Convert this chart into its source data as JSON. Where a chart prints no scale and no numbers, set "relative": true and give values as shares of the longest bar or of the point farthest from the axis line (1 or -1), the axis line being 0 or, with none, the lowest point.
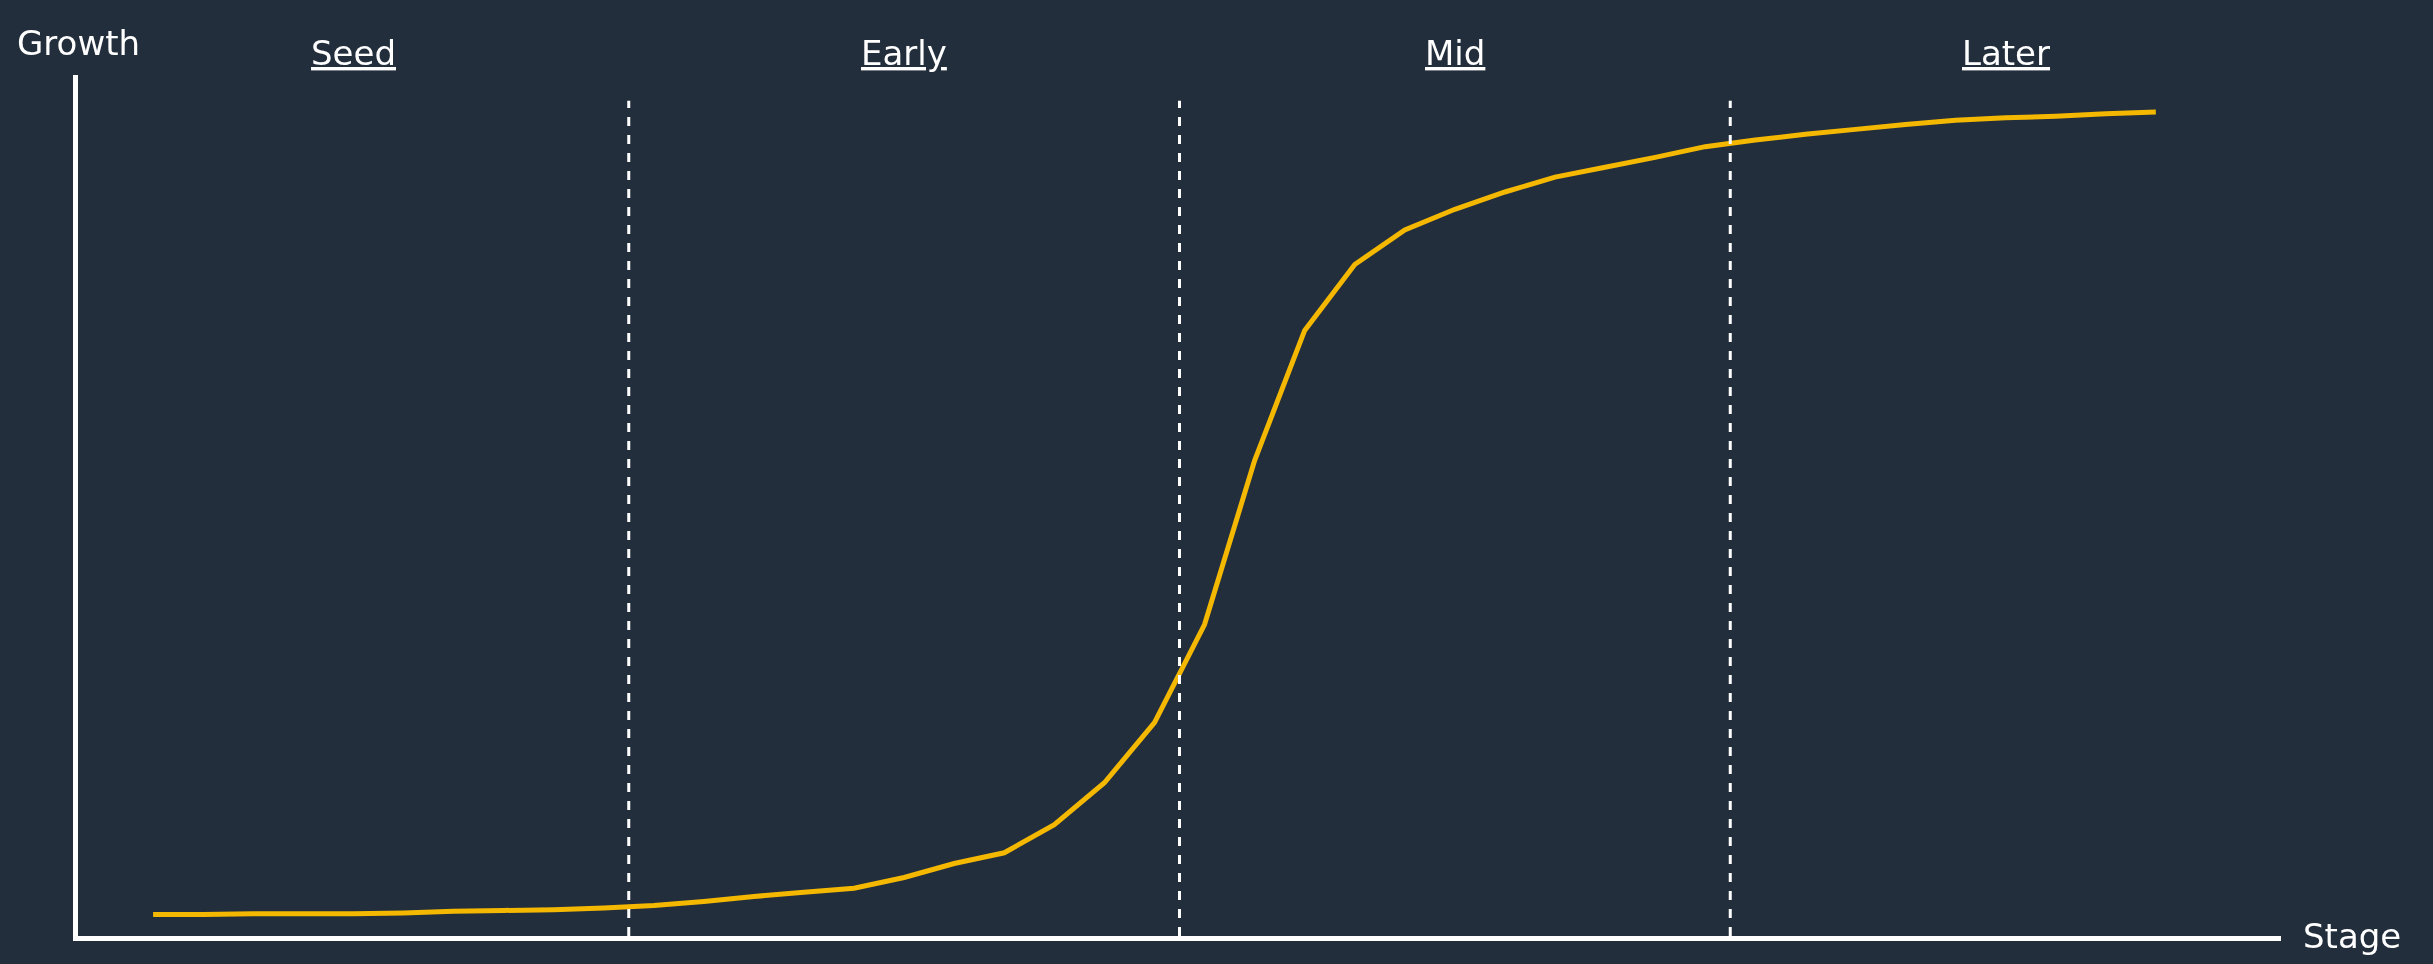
{
  "chart_data": {
    "type": "line",
    "relative": true,
    "xlabel": "Stage",
    "ylabel": "Growth",
    "categories": [
      null,
      null,
      null,
      null,
      null,
      null,
      null,
      null,
      null,
      null,
      null,
      null,
      null,
      null,
      null,
      null,
      null,
      null,
      null,
      null,
      null,
      null,
      null,
      null,
      null,
      null,
      null,
      null,
      null,
      null,
      null,
      null,
      null,
      null,
      null,
      null,
      null,
      null,
      null,
      null,
      null,
      null,
      null,
      null
    ],
    "series": [
      {
        "color": "#f5b800",
        "values": [
          null,
          0.026,
          0.026,
          0.027,
          0.027,
          0.027,
          0.028,
          0.03,
          0.031,
          0.032,
          0.034,
          0.037,
          0.042,
          0.048,
          0.053,
          0.058,
          0.071,
          0.088,
          0.101,
          0.135,
          0.186,
          0.259,
          0.378,
          0.577,
          0.735,
          0.815,
          0.857,
          0.882,
          0.903,
          0.921,
          0.933,
          0.945,
          0.958,
          0.966,
          0.973,
          0.979,
          0.985,
          0.99,
          0.993,
          0.995,
          0.998,
          1,
          null,
          null
        ]
      }
    ],
    "annotations": [
      "Seed",
      "Early",
      "Mid",
      "Later"
    ],
    "grid": false,
    "line_style": "solid",
    "marker": "none"
  }
}
